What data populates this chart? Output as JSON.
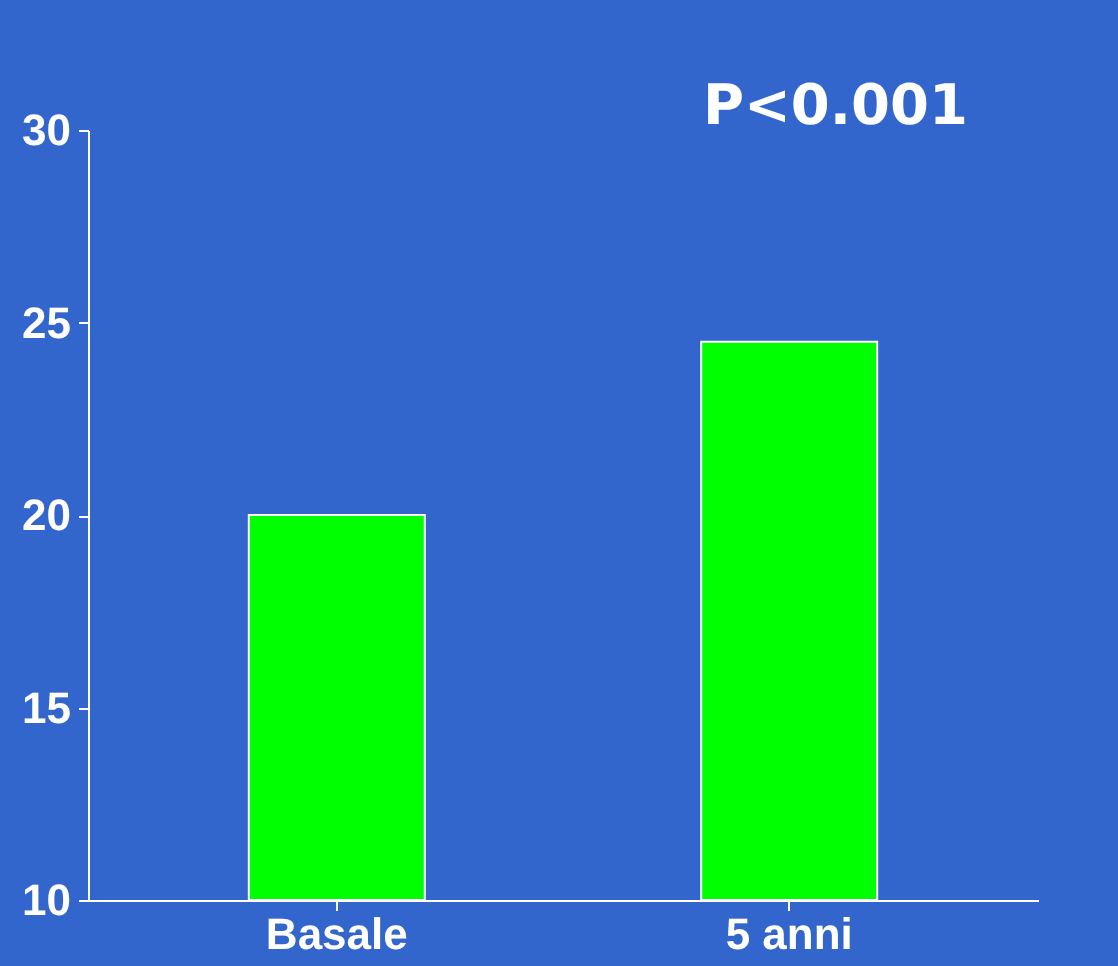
{
  "chart_data": {
    "type": "bar",
    "categories": [
      "Basale",
      "5 anni"
    ],
    "series": [
      {
        "color": "#00ff00",
        "values": [
          20,
          24.5
        ]
      }
    ],
    "ylim": [
      10,
      30
    ],
    "yticks": [
      10,
      15,
      20,
      25,
      30
    ],
    "grid": false,
    "annotations": [
      "P<0.001"
    ]
  }
}
